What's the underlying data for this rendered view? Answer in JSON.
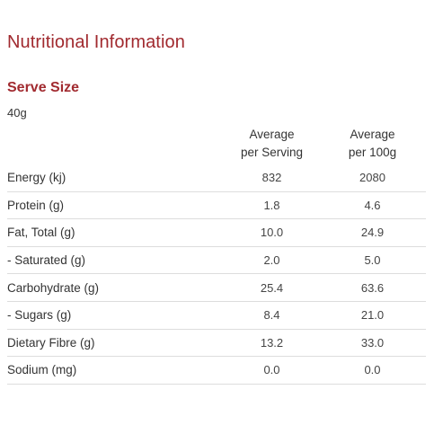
{
  "title": "Nutritional Information",
  "serve_size": {
    "heading": "Serve Size",
    "value": "40g"
  },
  "table": {
    "headers": {
      "per_serving_line1": "Average",
      "per_serving_line2": "per Serving",
      "per_100g_line1": "Average",
      "per_100g_line2": "per 100g"
    },
    "rows": [
      {
        "label": "Energy (kj)",
        "per_serving": "832",
        "per_100g": "2080"
      },
      {
        "label": "Protein (g)",
        "per_serving": "1.8",
        "per_100g": "4.6"
      },
      {
        "label": "Fat, Total (g)",
        "per_serving": "10.0",
        "per_100g": "24.9"
      },
      {
        "label": "- Saturated (g)",
        "per_serving": "2.0",
        "per_100g": "5.0"
      },
      {
        "label": "Carbohydrate (g)",
        "per_serving": "25.4",
        "per_100g": "63.6"
      },
      {
        "label": "- Sugars (g)",
        "per_serving": "8.4",
        "per_100g": "21.0"
      },
      {
        "label": "Dietary Fibre (g)",
        "per_serving": "13.2",
        "per_100g": "33.0"
      },
      {
        "label": "Sodium (mg)",
        "per_serving": "0.0",
        "per_100g": "0.0"
      }
    ]
  },
  "colors": {
    "accent": "#a12a2f",
    "text": "#333333",
    "divider": "#dddddd"
  }
}
